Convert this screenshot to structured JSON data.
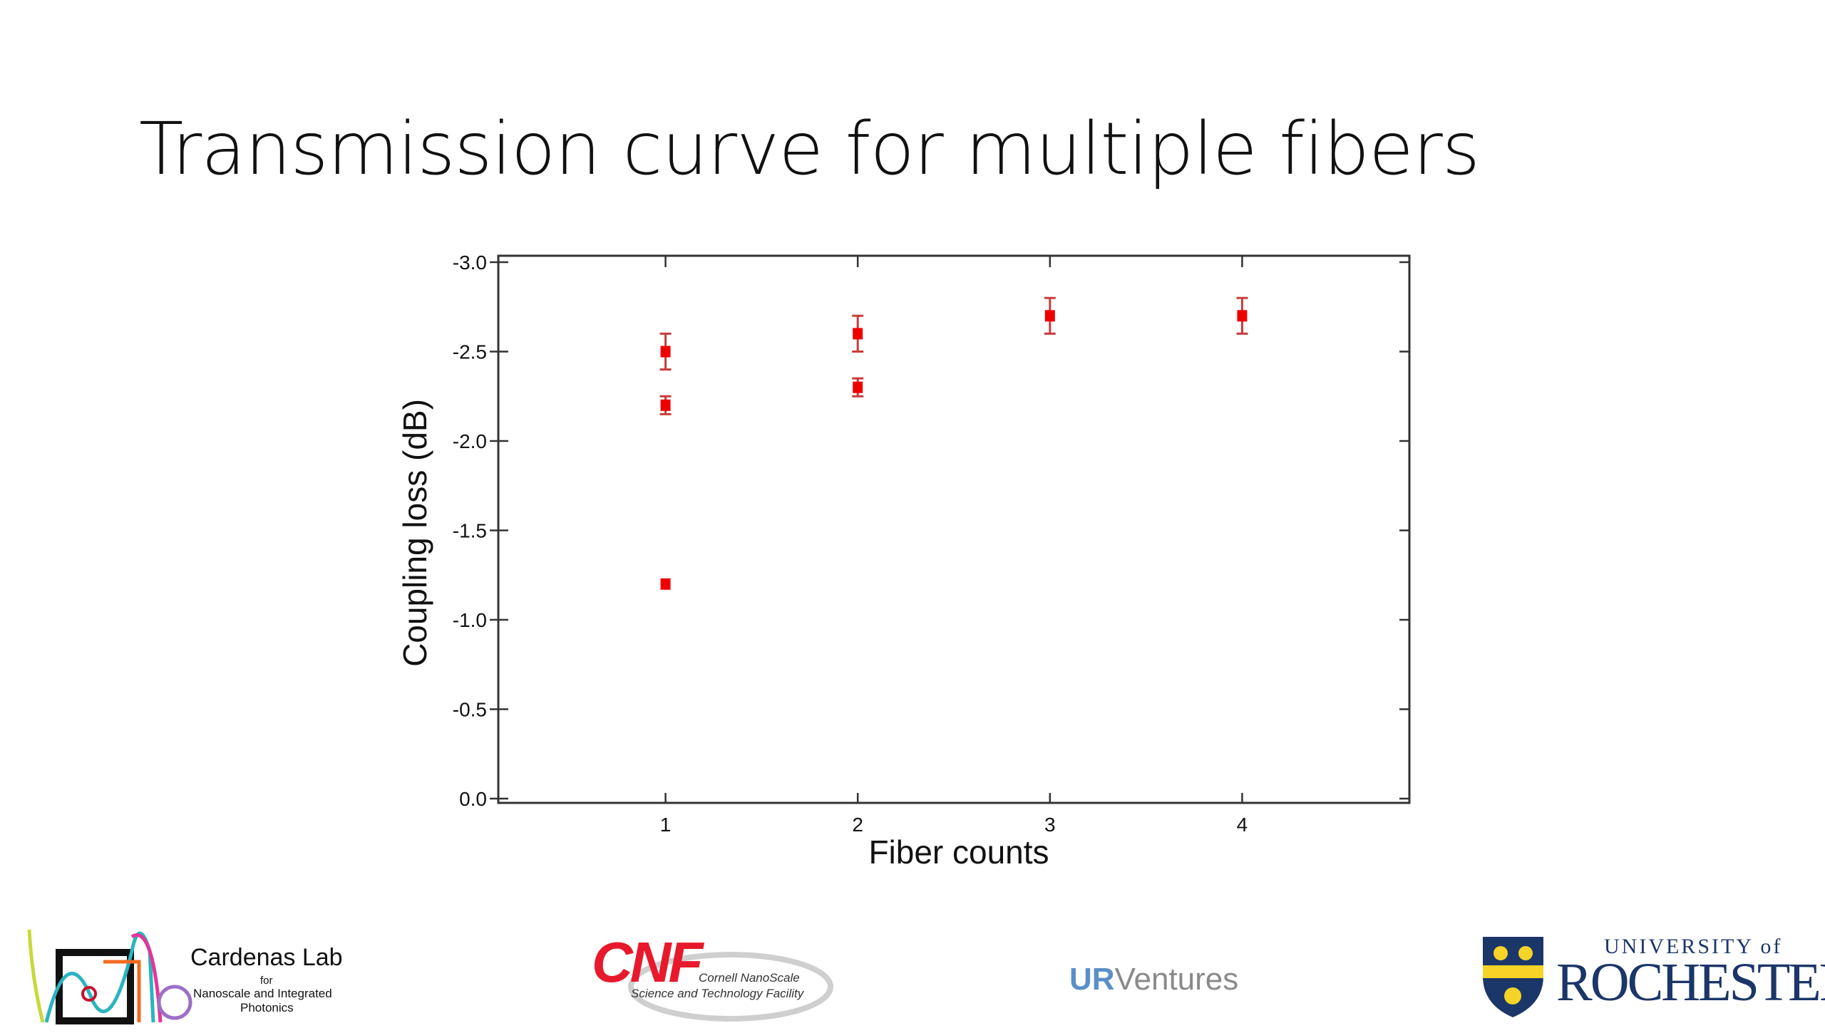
{
  "slide": {
    "title": "Transmission curve for multiple fibers"
  },
  "chart_data": {
    "type": "scatter",
    "title": "",
    "xlabel": "Fiber counts",
    "ylabel": "Coupling loss (dB)",
    "xlim": [
      0.13,
      4.87
    ],
    "ylim": [
      -3.0,
      0.0
    ],
    "y_axis_inverted": true,
    "xticks": [
      1,
      2,
      3,
      4
    ],
    "xtick_labels": [
      "1",
      "2",
      "3",
      "4"
    ],
    "yticks": [
      -3.0,
      -2.5,
      -2.0,
      -1.5,
      -1.0,
      -0.5,
      0.0
    ],
    "ytick_labels": [
      "-3.0",
      "-2.5",
      "-2.0",
      "-1.5",
      "-1.0",
      "-0.5",
      "0.0"
    ],
    "grid": false,
    "marker": "square",
    "color": "#ee0000",
    "errorbar_color": "#c83c3c",
    "points": [
      {
        "x": 1,
        "y": -2.5,
        "err": 0.1
      },
      {
        "x": 1,
        "y": -2.2,
        "err": 0.05
      },
      {
        "x": 1,
        "y": -1.2,
        "err": 0
      },
      {
        "x": 2,
        "y": -2.6,
        "err": 0.1
      },
      {
        "x": 2,
        "y": -2.3,
        "err": 0.05
      },
      {
        "x": 3,
        "y": -2.7,
        "err": 0.1
      },
      {
        "x": 4,
        "y": -2.7,
        "err": 0.1
      }
    ]
  },
  "logos": {
    "cardenas": {
      "name": "Cardenas Lab",
      "line1": "for",
      "line2": "Nanoscale and Integrated",
      "line3": "Photonics"
    },
    "cnf": {
      "name": "CNF",
      "line1": "Cornell NanoScale",
      "line2": "Science and Technology Facility",
      "color": "#e8192c"
    },
    "urventures": {
      "ur": "UR",
      "ventures": "Ventures",
      "ur_color": "#5b8fc9",
      "ventures_color": "#8a8a8a"
    },
    "rochester": {
      "line1": "UNIVERSITY of",
      "line2": "ROCHESTER",
      "color": "#1b3668",
      "accent": "#f5d327"
    }
  }
}
